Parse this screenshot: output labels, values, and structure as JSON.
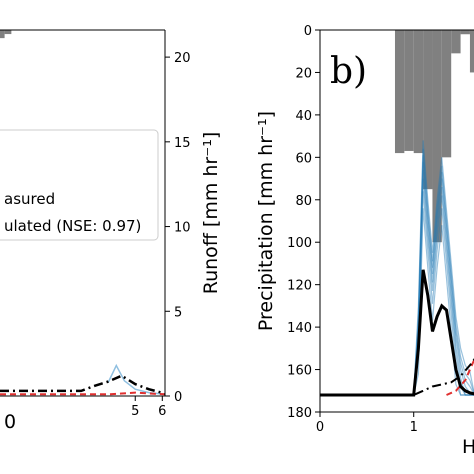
{
  "chart_data": [
    {
      "panel": "a",
      "type": "line",
      "xlabel": "",
      "xlim": [
        0,
        6.1
      ],
      "x_ticks": [
        {
          "value": 5,
          "label": "5"
        },
        {
          "value": 6,
          "label": "6"
        }
      ],
      "x_partial_tick_label": "0",
      "precip_ylim": [
        0,
        180
      ],
      "runoff_ylabel": "Runoff [mm hr⁻¹]",
      "runoff_ylim": [
        0,
        21.6
      ],
      "runoff_ticks": [
        {
          "value": 0,
          "label": "0"
        },
        {
          "value": 5,
          "label": "5"
        },
        {
          "value": 10,
          "label": "10"
        },
        {
          "value": 15,
          "label": "15"
        },
        {
          "value": 20,
          "label": "20"
        }
      ],
      "precip_bars": [
        {
          "x0": 0.0,
          "x1": 0.17,
          "value": 4
        },
        {
          "x0": 0.17,
          "x1": 0.42,
          "value": 2
        }
      ],
      "legend": {
        "placement": "center-left",
        "entries": [
          "asured",
          "ulated (NSE: 0.97)"
        ]
      },
      "measured": {
        "x": [
          0,
          2,
          3,
          4,
          4.5,
          5,
          5.5,
          6.1
        ],
        "y": [
          0.1,
          0.1,
          0.1,
          0.1,
          0.15,
          0.2,
          0.15,
          0.1
        ]
      },
      "simulated": {
        "x": [
          0,
          3,
          3.5,
          4,
          4.5,
          5,
          5.5,
          6.1
        ],
        "y": [
          0.3,
          0.3,
          0.6,
          0.85,
          1.2,
          0.7,
          0.4,
          0.15
        ]
      },
      "ensemble_spread": {
        "x": [
          4,
          4.3,
          4.6,
          5,
          5.5,
          6.1
        ],
        "y": [
          0.8,
          1.8,
          0.9,
          0.4,
          0.2,
          0.1
        ]
      }
    },
    {
      "panel": "b",
      "panel_label": "b)",
      "type": "line",
      "ylabel": "Precipitation [mm hr⁻¹]",
      "ylim": [
        0,
        180
      ],
      "y_inverted": true,
      "y_ticks": [
        {
          "value": 0,
          "label": "0"
        },
        {
          "value": 20,
          "label": "20"
        },
        {
          "value": 40,
          "label": "40"
        },
        {
          "value": 60,
          "label": "60"
        },
        {
          "value": 80,
          "label": "80"
        },
        {
          "value": 100,
          "label": "100"
        },
        {
          "value": 120,
          "label": "120"
        },
        {
          "value": 140,
          "label": "140"
        },
        {
          "value": 160,
          "label": "160"
        },
        {
          "value": 180,
          "label": "180"
        }
      ],
      "xlim": [
        0,
        1.75
      ],
      "x_ticks": [
        {
          "value": 0,
          "label": "0"
        },
        {
          "value": 1,
          "label": "1"
        }
      ],
      "xlabel_partial": "H",
      "precip_bars": [
        {
          "x0": 0.8,
          "x1": 0.9,
          "value": 58
        },
        {
          "x0": 0.9,
          "x1": 1.0,
          "value": 57
        },
        {
          "x0": 1.0,
          "x1": 1.1,
          "value": 58
        },
        {
          "x0": 1.1,
          "x1": 1.2,
          "value": 75
        },
        {
          "x0": 1.2,
          "x1": 1.3,
          "value": 100
        },
        {
          "x0": 1.3,
          "x1": 1.4,
          "value": 60
        },
        {
          "x0": 1.4,
          "x1": 1.5,
          "value": 11
        },
        {
          "x0": 1.5,
          "x1": 1.6,
          "value": 2
        },
        {
          "x0": 1.6,
          "x1": 1.7,
          "value": 20
        },
        {
          "x0": 1.7,
          "x1": 1.75,
          "value": 55
        }
      ],
      "measured": {
        "x": [
          0,
          1.0,
          1.1,
          1.2,
          1.4,
          1.5,
          1.6,
          1.7,
          1.75
        ],
        "y": [
          172,
          172,
          170,
          168,
          166,
          163,
          158,
          152,
          148
        ]
      },
      "simulated": {
        "x": [
          0,
          1.0,
          1.05,
          1.1,
          1.15,
          1.2,
          1.25,
          1.3,
          1.35,
          1.4,
          1.45,
          1.5,
          1.55,
          1.6,
          1.7,
          1.75
        ],
        "y": [
          172,
          172,
          150,
          113,
          125,
          142,
          135,
          130,
          132,
          146,
          160,
          168,
          170,
          171,
          172,
          172
        ]
      },
      "ensemble_spread": {
        "x": [
          1.0,
          1.05,
          1.1,
          1.15,
          1.2,
          1.25,
          1.3,
          1.35,
          1.4,
          1.45,
          1.5,
          1.55,
          1.6,
          1.65
        ],
        "y": [
          172,
          140,
          62,
          90,
          115,
          90,
          70,
          95,
          120,
          145,
          160,
          168,
          171,
          172
        ]
      },
      "red_curve": {
        "x": [
          1.35,
          1.45,
          1.55,
          1.62,
          1.7,
          1.75
        ],
        "y": [
          172,
          170,
          165,
          158,
          150,
          146
        ]
      }
    }
  ]
}
